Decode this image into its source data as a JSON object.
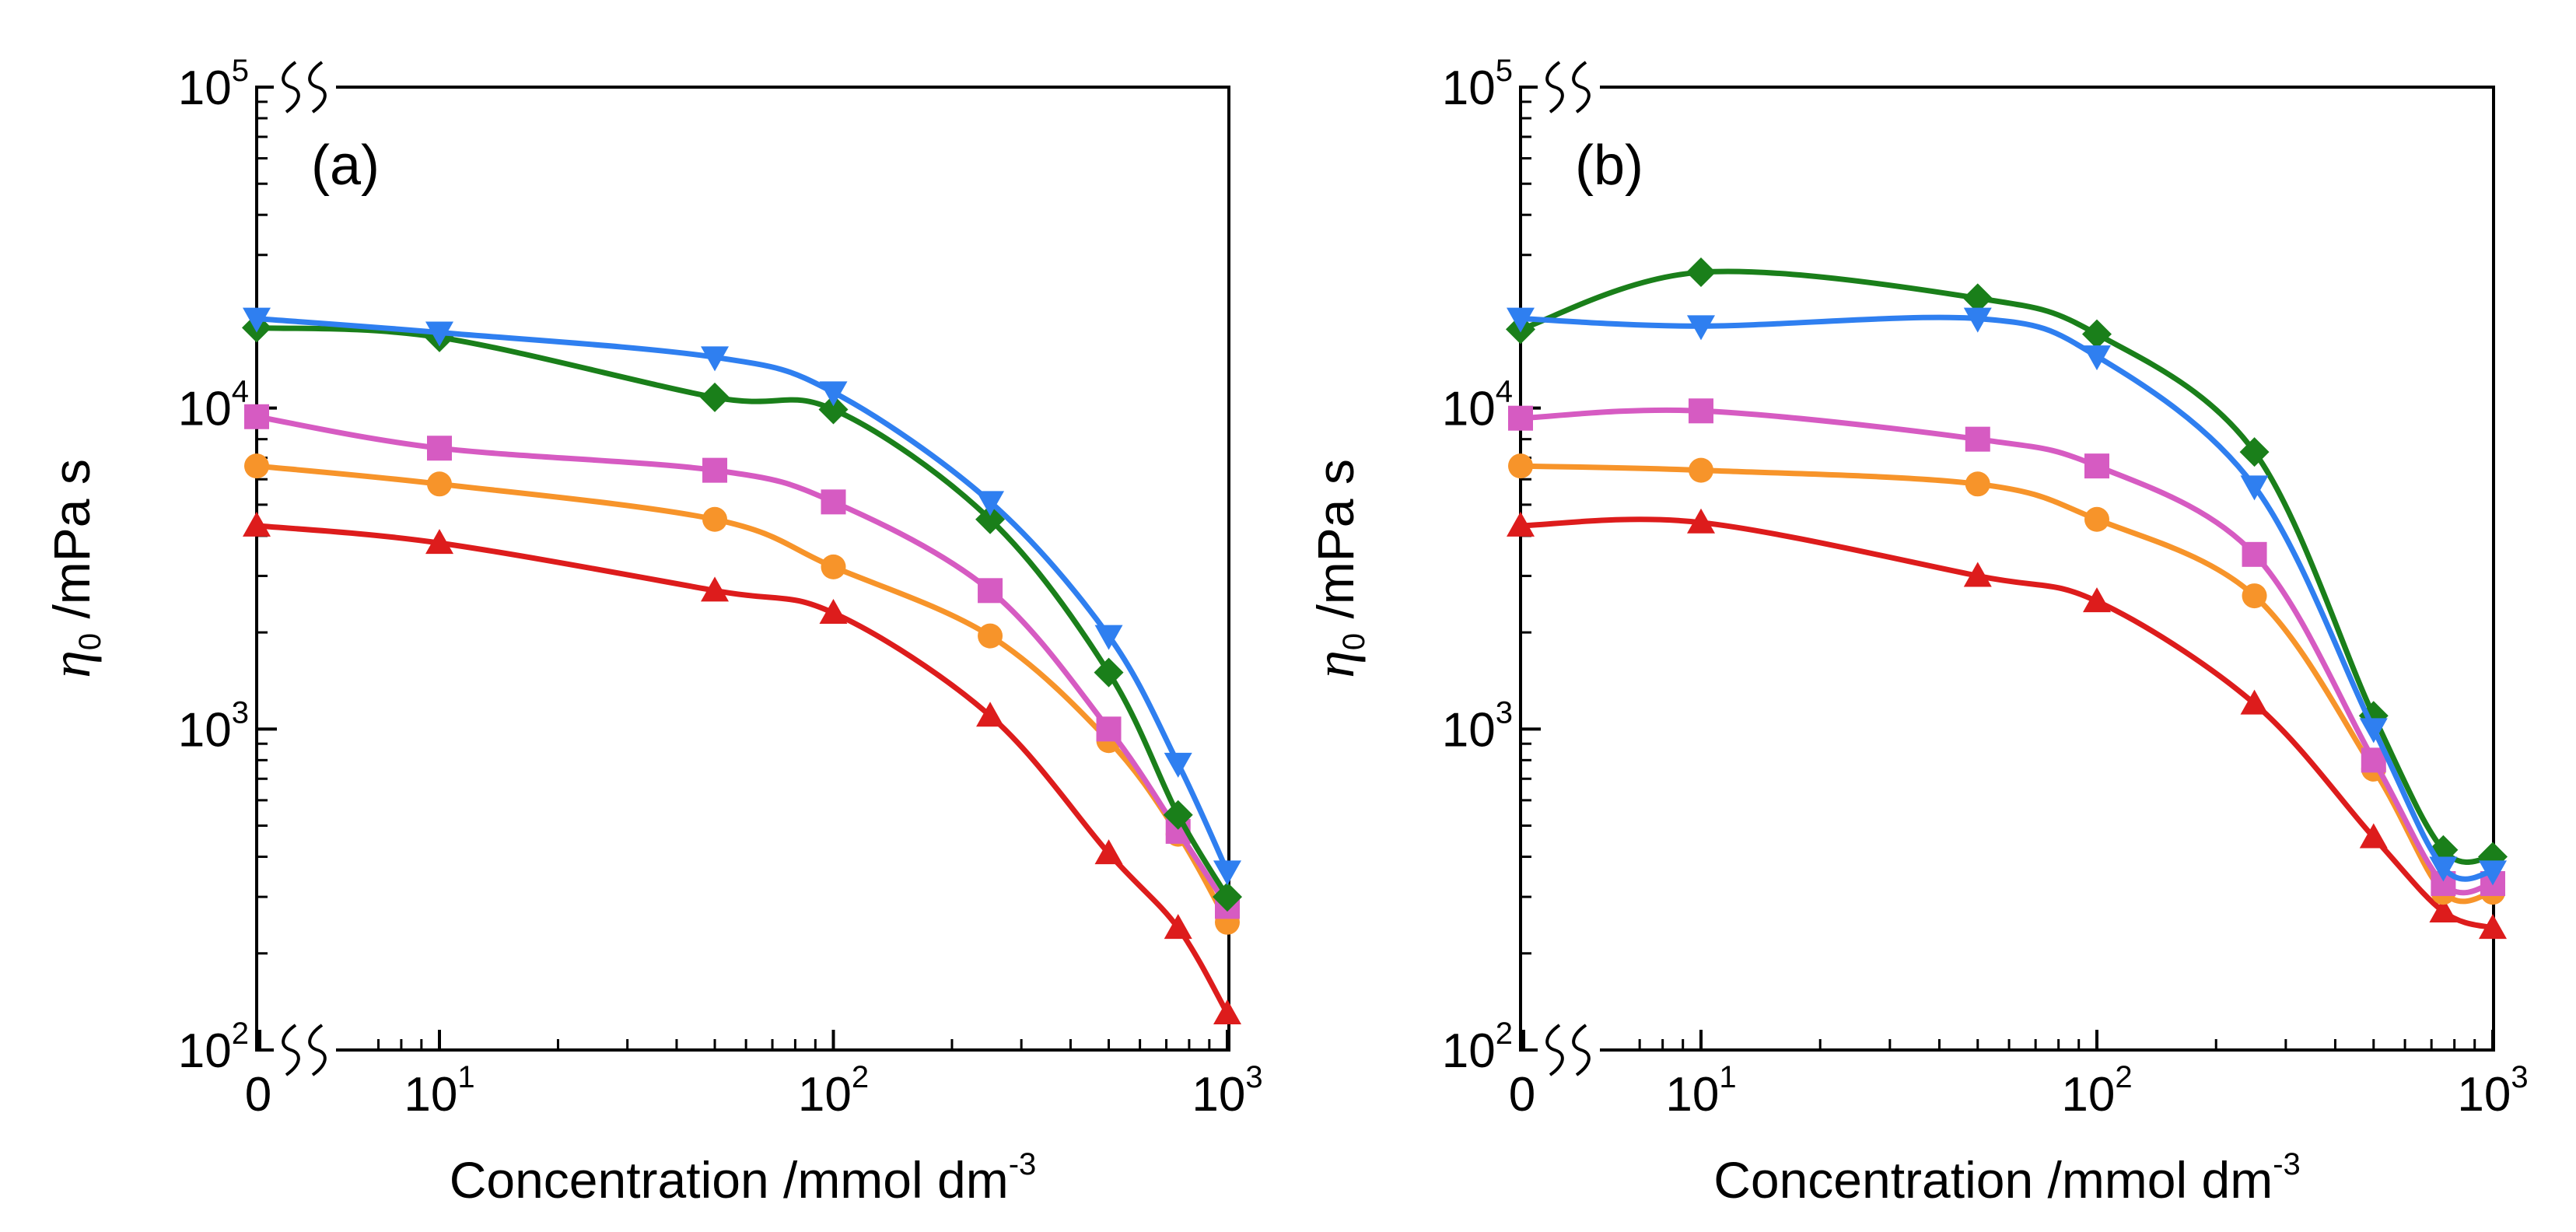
{
  "colors": {
    "red": "#dd1c1c",
    "orange": "#f7942a",
    "magenta": "#d65bc2",
    "green": "#1a7f1a",
    "blue": "#2f7ff0",
    "axis": "#000000"
  },
  "chart_data": [
    {
      "type": "line",
      "panel_label": "(a)",
      "xlabel": {
        "main": "Concentration /mmol dm",
        "exp": "-3"
      },
      "ylabel": {
        "sym": "η",
        "sub": "0",
        "rest": " /mPa s"
      },
      "x_scale": "log (broken axis, first point at 0)",
      "y_scale": "log",
      "ylim": [
        100,
        100000
      ],
      "xlim": [
        1,
        1000
      ],
      "x_ticks": [
        {
          "base": "0",
          "exp": ""
        },
        {
          "base": "10",
          "exp": "1"
        },
        {
          "base": "10",
          "exp": "2"
        },
        {
          "base": "10",
          "exp": "3"
        }
      ],
      "y_ticks": [
        {
          "base": "10",
          "exp": "2"
        },
        {
          "base": "10",
          "exp": "3"
        },
        {
          "base": "10",
          "exp": "4"
        },
        {
          "base": "10",
          "exp": "5"
        }
      ],
      "x": [
        0,
        10,
        50,
        100,
        250,
        500,
        750,
        1000
      ],
      "series": [
        {
          "name": "red",
          "marker": "triangle-up",
          "color": "#dd1c1c",
          "values": [
            4300,
            3800,
            2700,
            2300,
            1100,
            410,
            240,
            130
          ]
        },
        {
          "name": "orange",
          "marker": "circle",
          "color": "#f7942a",
          "values": [
            6600,
            5800,
            4500,
            3200,
            1950,
            920,
            470,
            250
          ]
        },
        {
          "name": "magenta",
          "marker": "square",
          "color": "#d65bc2",
          "values": [
            9400,
            7500,
            6400,
            5100,
            2700,
            1000,
            480,
            280
          ]
        },
        {
          "name": "green",
          "marker": "diamond",
          "color": "#1a7f1a",
          "values": [
            17800,
            16600,
            10800,
            9900,
            4500,
            1500,
            540,
            300
          ]
        },
        {
          "name": "blue",
          "marker": "triangle-down",
          "color": "#2f7ff0",
          "values": [
            19000,
            17200,
            14400,
            11200,
            5100,
            1950,
            780,
            360
          ]
        }
      ]
    },
    {
      "type": "line",
      "panel_label": "(b)",
      "xlabel": {
        "main": "Concentration /mmol dm",
        "exp": "-3"
      },
      "ylabel": {
        "sym": "η",
        "sub": "0",
        "rest": " /mPa s"
      },
      "x_scale": "log (broken axis, first point at 0)",
      "y_scale": "log",
      "ylim": [
        100,
        100000
      ],
      "xlim": [
        1,
        1000
      ],
      "x_ticks": [
        {
          "base": "0",
          "exp": ""
        },
        {
          "base": "10",
          "exp": "1"
        },
        {
          "base": "10",
          "exp": "2"
        },
        {
          "base": "10",
          "exp": "3"
        }
      ],
      "y_ticks": [
        {
          "base": "10",
          "exp": "2"
        },
        {
          "base": "10",
          "exp": "3"
        },
        {
          "base": "10",
          "exp": "4"
        },
        {
          "base": "10",
          "exp": "5"
        }
      ],
      "x": [
        0,
        10,
        50,
        100,
        250,
        500,
        750,
        1000
      ],
      "series": [
        {
          "name": "red",
          "marker": "triangle-up",
          "color": "#dd1c1c",
          "values": [
            4300,
            4400,
            3000,
            2500,
            1200,
            460,
            270,
            240
          ]
        },
        {
          "name": "orange",
          "marker": "circle",
          "color": "#f7942a",
          "values": [
            6600,
            6400,
            5800,
            4500,
            2600,
            750,
            310,
            310
          ]
        },
        {
          "name": "magenta",
          "marker": "square",
          "color": "#d65bc2",
          "values": [
            9300,
            9800,
            8000,
            6600,
            3500,
            800,
            330,
            330
          ]
        },
        {
          "name": "green",
          "marker": "diamond",
          "color": "#1a7f1a",
          "values": [
            17600,
            26500,
            22000,
            17000,
            7300,
            1100,
            420,
            400
          ]
        },
        {
          "name": "blue",
          "marker": "triangle-down",
          "color": "#2f7ff0",
          "values": [
            19000,
            18000,
            19000,
            14500,
            5700,
            1000,
            370,
            360
          ]
        }
      ]
    }
  ]
}
